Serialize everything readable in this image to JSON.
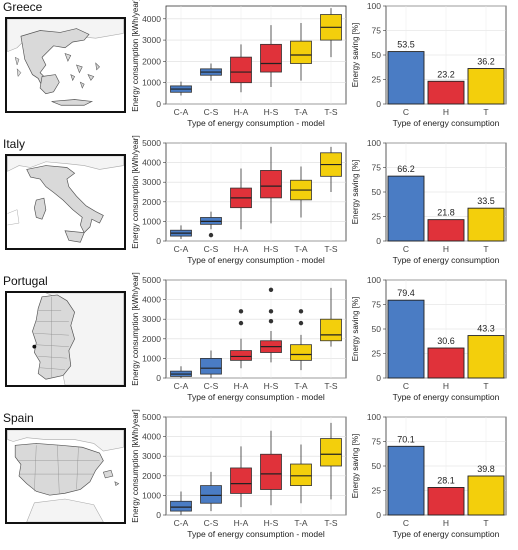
{
  "colors": {
    "C": "#4a7cc4",
    "H": "#e0323a",
    "T": "#f3cf0c"
  },
  "countries": [
    {
      "name": "Greece",
      "map_icon": "greece-map-icon",
      "chart_data": [
        {
          "type": "box",
          "xlabel": "Type of energy consumption - model",
          "ylabel": "Energy consumption [kWh/year]",
          "ylim": [
            0,
            4600
          ],
          "yticks": [
            0,
            1000,
            2000,
            3000,
            4000
          ],
          "categories": [
            "C-A",
            "C-S",
            "H-A",
            "H-S",
            "T-A",
            "T-S"
          ],
          "boxes": [
            {
              "min": 400,
              "q1": 550,
              "median": 700,
              "q3": 850,
              "max": 1050,
              "outliers": []
            },
            {
              "min": 1100,
              "q1": 1350,
              "median": 1500,
              "q3": 1650,
              "max": 1900,
              "outliers": []
            },
            {
              "min": 550,
              "q1": 1000,
              "median": 1500,
              "q3": 2200,
              "max": 2800,
              "outliers": []
            },
            {
              "min": 800,
              "q1": 1500,
              "median": 1900,
              "q3": 2800,
              "max": 3700,
              "outliers": []
            },
            {
              "min": 1100,
              "q1": 1900,
              "median": 2300,
              "q3": 2950,
              "max": 3800,
              "outliers": []
            },
            {
              "min": 2200,
              "q1": 3000,
              "median": 3600,
              "q3": 4200,
              "max": 4500,
              "outliers": []
            }
          ]
        },
        {
          "type": "bar",
          "xlabel": "Type of energy consumption",
          "ylabel": "Energy saving [%]",
          "ylim": [
            0,
            100
          ],
          "yticks": [
            0,
            25,
            50,
            75,
            100
          ],
          "categories": [
            "C",
            "H",
            "T"
          ],
          "values": [
            53.5,
            23.2,
            36.2
          ],
          "value_labels": [
            "53.5",
            "23.2",
            "36.2"
          ]
        }
      ]
    },
    {
      "name": "Italy",
      "map_icon": "italy-map-icon",
      "chart_data": [
        {
          "type": "box",
          "xlabel": "Type of energy consumption - model",
          "ylabel": "Energy consumption [kWh/year]",
          "ylim": [
            0,
            5000
          ],
          "yticks": [
            0,
            1000,
            2000,
            3000,
            4000,
            5000
          ],
          "categories": [
            "C-A",
            "C-S",
            "H-A",
            "H-S",
            "T-A",
            "T-S"
          ],
          "boxes": [
            {
              "min": 100,
              "q1": 250,
              "median": 400,
              "q3": 550,
              "max": 800,
              "outliers": []
            },
            {
              "min": 600,
              "q1": 850,
              "median": 1000,
              "q3": 1200,
              "max": 1500,
              "outliers": [
                300
              ]
            },
            {
              "min": 600,
              "q1": 1700,
              "median": 2200,
              "q3": 2700,
              "max": 3700,
              "outliers": []
            },
            {
              "min": 900,
              "q1": 2200,
              "median": 2800,
              "q3": 3600,
              "max": 4800,
              "outliers": []
            },
            {
              "min": 1200,
              "q1": 2100,
              "median": 2600,
              "q3": 3100,
              "max": 3800,
              "outliers": []
            },
            {
              "min": 2500,
              "q1": 3300,
              "median": 3900,
              "q3": 4500,
              "max": 4800,
              "outliers": []
            }
          ]
        },
        {
          "type": "bar",
          "xlabel": "Type of energy consumption",
          "ylabel": "Energy saving [%]",
          "ylim": [
            0,
            100
          ],
          "yticks": [
            0,
            25,
            50,
            75,
            100
          ],
          "categories": [
            "C",
            "H",
            "T"
          ],
          "values": [
            66.2,
            21.8,
            33.5
          ],
          "value_labels": [
            "66.2",
            "21.8",
            "33.5"
          ]
        }
      ]
    },
    {
      "name": "Portugal",
      "map_icon": "portugal-map-icon",
      "chart_data": [
        {
          "type": "box",
          "xlabel": "Type of energy consumption - model",
          "ylabel": "Energy consumption [kWh/year]",
          "ylim": [
            0,
            5000
          ],
          "yticks": [
            0,
            1000,
            2000,
            3000,
            4000,
            5000
          ],
          "categories": [
            "C-A",
            "C-S",
            "H-A",
            "H-S",
            "T-A",
            "T-S"
          ],
          "boxes": [
            {
              "min": 0,
              "q1": 80,
              "median": 200,
              "q3": 350,
              "max": 600,
              "outliers": []
            },
            {
              "min": 0,
              "q1": 200,
              "median": 500,
              "q3": 1000,
              "max": 1400,
              "outliers": []
            },
            {
              "min": 500,
              "q1": 900,
              "median": 1100,
              "q3": 1400,
              "max": 2000,
              "outliers": [
                2800,
                3400
              ]
            },
            {
              "min": 800,
              "q1": 1300,
              "median": 1600,
              "q3": 1900,
              "max": 2400,
              "outliers": [
                2900,
                3400,
                4500
              ]
            },
            {
              "min": 400,
              "q1": 900,
              "median": 1200,
              "q3": 1700,
              "max": 2200,
              "outliers": [
                2800,
                3400
              ]
            },
            {
              "min": 1600,
              "q1": 1900,
              "median": 2200,
              "q3": 3000,
              "max": 4600,
              "outliers": []
            }
          ]
        },
        {
          "type": "bar",
          "xlabel": "Type of energy consumption",
          "ylabel": "Energy saving [%]",
          "ylim": [
            0,
            100
          ],
          "yticks": [
            0,
            25,
            50,
            75,
            100
          ],
          "categories": [
            "C",
            "H",
            "T"
          ],
          "values": [
            79.4,
            30.6,
            43.3
          ],
          "value_labels": [
            "79.4",
            "30.6",
            "43.3"
          ]
        }
      ]
    },
    {
      "name": "Spain",
      "map_icon": "spain-map-icon",
      "chart_data": [
        {
          "type": "box",
          "xlabel": "Type of energy consumption - model",
          "ylabel": "Energy consumption [kWh/year]",
          "ylim": [
            0,
            5000
          ],
          "yticks": [
            0,
            1000,
            2000,
            3000,
            4000,
            5000
          ],
          "categories": [
            "C-A",
            "C-S",
            "H-A",
            "H-S",
            "T-A",
            "T-S"
          ],
          "boxes": [
            {
              "min": 0,
              "q1": 200,
              "median": 400,
              "q3": 700,
              "max": 1200,
              "outliers": []
            },
            {
              "min": 200,
              "q1": 600,
              "median": 1000,
              "q3": 1500,
              "max": 2200,
              "outliers": []
            },
            {
              "min": 400,
              "q1": 1100,
              "median": 1600,
              "q3": 2400,
              "max": 3500,
              "outliers": []
            },
            {
              "min": 500,
              "q1": 1300,
              "median": 2100,
              "q3": 3100,
              "max": 4300,
              "outliers": []
            },
            {
              "min": 600,
              "q1": 1500,
              "median": 2000,
              "q3": 2600,
              "max": 3600,
              "outliers": []
            },
            {
              "min": 800,
              "q1": 2500,
              "median": 3100,
              "q3": 3900,
              "max": 4700,
              "outliers": []
            }
          ]
        },
        {
          "type": "bar",
          "xlabel": "Type of energy consumption",
          "ylabel": "Energy saving [%]",
          "ylim": [
            0,
            100
          ],
          "yticks": [
            0,
            25,
            50,
            75,
            100
          ],
          "categories": [
            "C",
            "H",
            "T"
          ],
          "values": [
            70.1,
            28.1,
            39.8
          ],
          "value_labels": [
            "70.1",
            "28.1",
            "39.8"
          ]
        }
      ]
    }
  ]
}
